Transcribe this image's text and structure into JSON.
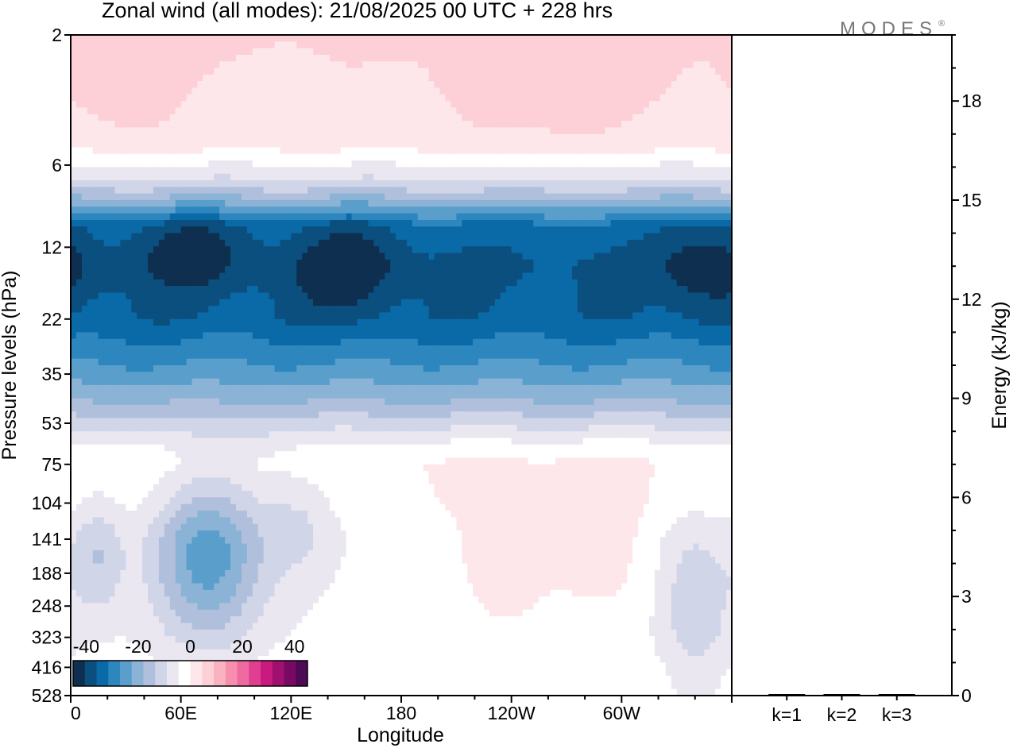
{
  "title": "Zonal wind (all modes):  21/08/2025  00 UTC  + 228 hrs",
  "logo": "MODES",
  "logo_mark": "®",
  "chart_data": [
    {
      "type": "heatmap",
      "ylabel": "Pressure levels (hPa)",
      "xlabel": "Longitude",
      "y_scale": "log",
      "y_ticks": [
        "2",
        "6",
        "12",
        "22",
        "35",
        "53",
        "75",
        "104",
        "141",
        "188",
        "248",
        "323",
        "416",
        "528"
      ],
      "x_ticks": [
        "0",
        "60E",
        "120E",
        "180",
        "120W",
        "60W"
      ],
      "x_tick_values": [
        0,
        60,
        120,
        180,
        240,
        300
      ],
      "xlim": [
        0,
        360
      ],
      "colorbar": {
        "tick_labels": [
          "-40",
          "-20",
          "0",
          "20",
          "40"
        ],
        "tick_values": [
          -40,
          -20,
          0,
          20,
          40
        ],
        "range": [
          -45,
          45
        ],
        "colors": [
          "#0e2f4f",
          "#0b4f7f",
          "#0a6aa8",
          "#2d87be",
          "#5a9fcb",
          "#8bb3d6",
          "#b0c0dc",
          "#d0d5e8",
          "#eae7f1",
          "#ffffff",
          "#fde7ea",
          "#fcd0d6",
          "#f9b3c0",
          "#f58fad",
          "#ef6aa0",
          "#e03f91",
          "#c91b7f",
          "#a0106f",
          "#780a66",
          "#4f0a55"
        ]
      },
      "bands": [
        {
          "p": 2,
          "value": 5
        },
        {
          "p": 5,
          "value": 2
        },
        {
          "p": 7,
          "value": -10
        },
        {
          "p": 9,
          "value": -25
        },
        {
          "p": 10,
          "value": -33
        },
        {
          "p": 14,
          "value": -37
        },
        {
          "p": 22,
          "value": -35
        },
        {
          "p": 28,
          "value": -30
        },
        {
          "p": 35,
          "value": -25
        },
        {
          "p": 44,
          "value": -18
        },
        {
          "p": 53,
          "value": -11
        },
        {
          "p": 65,
          "value": -3
        },
        {
          "p": 75,
          "value": 0
        },
        {
          "p": 104,
          "value": -1
        },
        {
          "p": 141,
          "value": -3
        },
        {
          "p": 188,
          "value": -3
        },
        {
          "p": 248,
          "value": -3
        },
        {
          "p": 323,
          "value": -3
        },
        {
          "p": 416,
          "value": -2
        },
        {
          "p": 528,
          "value": -2
        }
      ],
      "anomalies": [
        {
          "lon": 75,
          "p": 165,
          "dlon": 22,
          "dp": 0.5,
          "value": -22
        },
        {
          "lon": 15,
          "p": 165,
          "dlon": 10,
          "dp": 0.35,
          "value": -10
        },
        {
          "lon": 125,
          "p": 120,
          "dlon": 14,
          "dp": 0.35,
          "value": -7
        },
        {
          "lon": 235,
          "p": 160,
          "dlon": 18,
          "dp": 0.45,
          "value": 6
        },
        {
          "lon": 290,
          "p": 150,
          "dlon": 20,
          "dp": 0.45,
          "value": 5
        },
        {
          "lon": 340,
          "p": 240,
          "dlon": 14,
          "dp": 0.5,
          "value": -10
        },
        {
          "lon": 150,
          "p": 14,
          "dlon": 20,
          "dp": 0.3,
          "value": -9
        },
        {
          "lon": 65,
          "p": 12,
          "dlon": 22,
          "dp": 0.25,
          "value": -8
        },
        {
          "lon": 345,
          "p": 14,
          "dlon": 18,
          "dp": 0.3,
          "value": -8
        },
        {
          "lon": 260,
          "p": 3,
          "dlon": 35,
          "dp": 0.35,
          "value": 5
        },
        {
          "lon": 30,
          "p": 3,
          "dlon": 20,
          "dp": 0.35,
          "value": 4
        }
      ]
    },
    {
      "type": "bar",
      "ylabel": "Energy (kJ/kg)",
      "categories": [
        "k=1",
        "k=2",
        "k=3"
      ],
      "values": [
        0.02,
        0.02,
        0.01
      ],
      "ylim": [
        0,
        20
      ],
      "y_ticks": [
        0,
        3,
        6,
        9,
        12,
        15,
        18
      ],
      "y_minor_step": 1
    }
  ]
}
